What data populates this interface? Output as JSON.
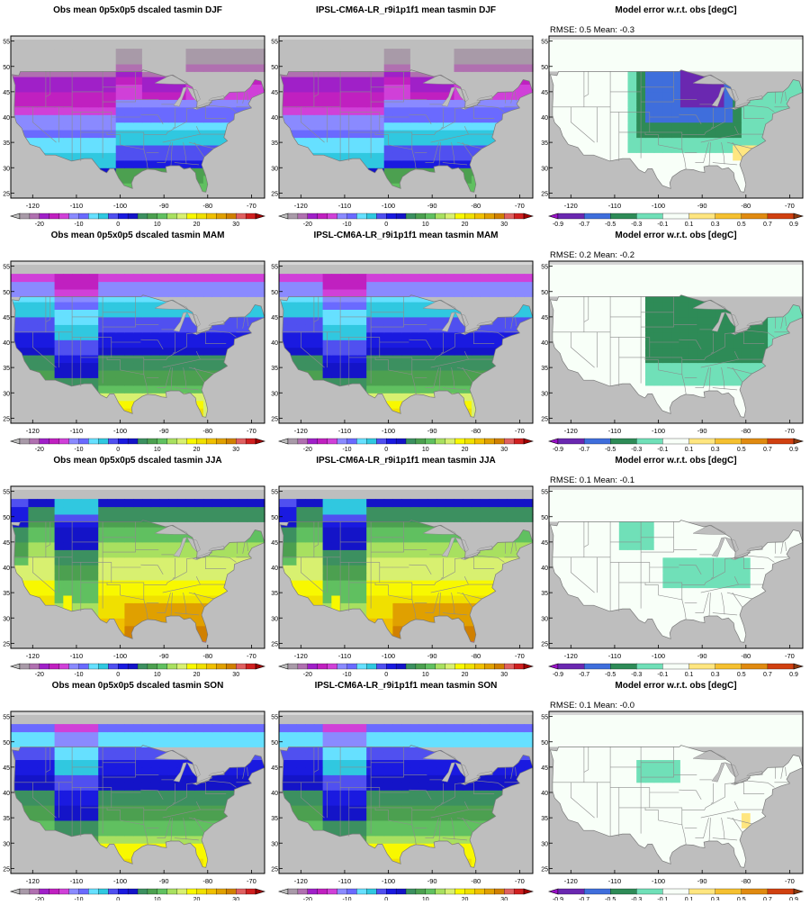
{
  "colors": {
    "ocean": "#bebebe",
    "land_nodata": "#ffffff",
    "state_lines": "#8c8c8c",
    "frame": "#000000"
  },
  "abs_colorbar": {
    "tick_labels": [
      "-20",
      "-10",
      "0",
      "10",
      "20",
      "30"
    ],
    "tick_values": [
      -20,
      -10,
      0,
      10,
      20,
      30
    ],
    "min": -25,
    "max": 30,
    "step": 2.5,
    "colors": [
      "#bebebe",
      "#a89aa8",
      "#b070b0",
      "#a020c8",
      "#c020c0",
      "#d040d8",
      "#8a8aff",
      "#6a6aff",
      "#66e0ff",
      "#30c8e0",
      "#5050f0",
      "#1a1ae0",
      "#1414c8",
      "#3c9060",
      "#4ca050",
      "#60c060",
      "#a8e060",
      "#d8f070",
      "#f8f800",
      "#f0e000",
      "#f0c000",
      "#e0a000",
      "#d08000",
      "#e06060",
      "#d02020",
      "#a00000"
    ]
  },
  "err_colorbar": {
    "tick_labels": [
      "-0.9",
      "-0.7",
      "-0.5",
      "-0.3",
      "-0.1",
      "0.1",
      "0.3",
      "0.5",
      "0.7",
      "0.9"
    ],
    "tick_values": [
      -0.9,
      -0.7,
      -0.5,
      -0.3,
      -0.1,
      0.1,
      0.3,
      0.5,
      0.7,
      0.9
    ],
    "min": -0.9,
    "max": 0.9,
    "step": 0.2,
    "colors": [
      "#9a10c8",
      "#6a28b0",
      "#3f6edc",
      "#2e8b57",
      "#70e0b8",
      "#f8fff8",
      "#ffe680",
      "#f5c030",
      "#e08a10",
      "#d04010",
      "#8b3a10"
    ]
  },
  "map_axes": {
    "lon_ticks": [
      "-120",
      "-110",
      "-100",
      "-90",
      "-80",
      "-70"
    ],
    "lon_values": [
      -120,
      -110,
      -100,
      -90,
      -80,
      -70
    ],
    "lat_ticks": [
      "25",
      "30",
      "35",
      "40",
      "45",
      "50",
      "55"
    ],
    "lat_values": [
      25,
      30,
      35,
      40,
      45,
      50,
      55
    ],
    "lon_range": [
      -125,
      -67
    ],
    "lat_range": [
      24,
      56
    ]
  },
  "panels": [
    {
      "title": "Obs mean 0p5x0p5 dscaled tasmin DJF",
      "kind": "abs",
      "season": "DJF",
      "source": "obs"
    },
    {
      "title": "IPSL-CM6A-LR_r9i1p1f1 mean tasmin DJF",
      "kind": "abs",
      "season": "DJF",
      "source": "model"
    },
    {
      "title": "Model error w.r.t. obs [degC]",
      "kind": "err",
      "season": "DJF",
      "annotation": "RMSE: 0.5  Mean: -0.3",
      "rmse": 0.5,
      "mean": -0.3
    },
    {
      "title": "Obs mean 0p5x0p5 dscaled tasmin MAM",
      "kind": "abs",
      "season": "MAM",
      "source": "obs"
    },
    {
      "title": "IPSL-CM6A-LR_r9i1p1f1 mean tasmin MAM",
      "kind": "abs",
      "season": "MAM",
      "source": "model"
    },
    {
      "title": "Model error w.r.t. obs [degC]",
      "kind": "err",
      "season": "MAM",
      "annotation": "RMSE: 0.2  Mean: -0.2",
      "rmse": 0.2,
      "mean": -0.2
    },
    {
      "title": "Obs mean 0p5x0p5 dscaled tasmin JJA",
      "kind": "abs",
      "season": "JJA",
      "source": "obs"
    },
    {
      "title": "IPSL-CM6A-LR_r9i1p1f1 mean tasmin JJA",
      "kind": "abs",
      "season": "JJA",
      "source": "model"
    },
    {
      "title": "Model error w.r.t. obs [degC]",
      "kind": "err",
      "season": "JJA",
      "annotation": "RMSE: 0.1  Mean: -0.1",
      "rmse": 0.1,
      "mean": -0.1
    },
    {
      "title": "Obs mean 0p5x0p5 dscaled tasmin SON",
      "kind": "abs",
      "season": "SON",
      "source": "obs"
    },
    {
      "title": "IPSL-CM6A-LR_r9i1p1f1 mean tasmin SON",
      "kind": "abs",
      "season": "SON",
      "source": "model"
    },
    {
      "title": "Model error w.r.t. obs [degC]",
      "kind": "err",
      "season": "SON",
      "annotation": "RMSE: 0.1  Mean: -0.0",
      "rmse": 0.1,
      "mean": -0.0
    }
  ],
  "chart_data": [
    {
      "type": "heatmap",
      "title": "Obs mean 0p5x0p5 dscaled tasmin DJF",
      "season": "DJF",
      "colorbar_range": [
        -25,
        30
      ],
      "regions": [
        {
          "name": "northern plains / upper midwest",
          "value": -17
        },
        {
          "name": "northern rockies",
          "value": -13
        },
        {
          "name": "central plains / ohio valley",
          "value": -7
        },
        {
          "name": "southern plains / southeast",
          "value": -1
        },
        {
          "name": "gulf coast",
          "value": 4
        },
        {
          "name": "south florida",
          "value": 12
        }
      ]
    },
    {
      "type": "heatmap",
      "title": "IPSL-CM6A-LR_r9i1p1f1 mean tasmin DJF",
      "season": "DJF",
      "colorbar_range": [
        -25,
        30
      ],
      "regions": [
        {
          "name": "northern plains / upper midwest",
          "value": -17
        },
        {
          "name": "northern rockies",
          "value": -13
        },
        {
          "name": "central plains / ohio valley",
          "value": -7
        },
        {
          "name": "southern plains / southeast",
          "value": -1
        },
        {
          "name": "gulf coast",
          "value": 4
        },
        {
          "name": "south florida",
          "value": 12
        }
      ]
    },
    {
      "type": "heatmap",
      "title": "Model error w.r.t. obs [degC]",
      "season": "DJF",
      "colorbar_range": [
        -0.9,
        0.9
      ],
      "rmse": 0.5,
      "mean": -0.3,
      "regions": [
        {
          "name": "upper midwest / great lakes",
          "value": -0.8
        },
        {
          "name": "northern plains",
          "value": -0.6
        },
        {
          "name": "central plains",
          "value": -0.4
        },
        {
          "name": "southwest / west",
          "value": 0.0
        },
        {
          "name": "carolinas / georgia",
          "value": 0.2
        }
      ]
    },
    {
      "type": "heatmap",
      "title": "Obs mean 0p5x0p5 dscaled tasmin MAM",
      "season": "MAM",
      "colorbar_range": [
        -25,
        30
      ],
      "regions": [
        {
          "name": "canada border",
          "value": -6
        },
        {
          "name": "northern states",
          "value": -1
        },
        {
          "name": "central",
          "value": 4
        },
        {
          "name": "southern",
          "value": 10
        },
        {
          "name": "gulf coast / south texas",
          "value": 16
        }
      ]
    },
    {
      "type": "heatmap",
      "title": "IPSL-CM6A-LR_r9i1p1f1 mean tasmin MAM",
      "season": "MAM",
      "colorbar_range": [
        -25,
        30
      ],
      "regions": [
        {
          "name": "canada border",
          "value": -6
        },
        {
          "name": "northern states",
          "value": -1
        },
        {
          "name": "central",
          "value": 4
        },
        {
          "name": "southern",
          "value": 10
        },
        {
          "name": "gulf coast / south texas",
          "value": 16
        }
      ]
    },
    {
      "type": "heatmap",
      "title": "Model error w.r.t. obs [degC]",
      "season": "MAM",
      "colorbar_range": [
        -0.9,
        0.9
      ],
      "rmse": 0.2,
      "mean": -0.2,
      "regions": [
        {
          "name": "great lakes",
          "value": -0.4
        },
        {
          "name": "east / midwest",
          "value": -0.2
        },
        {
          "name": "west",
          "value": 0.0
        }
      ]
    },
    {
      "type": "heatmap",
      "title": "Obs mean 0p5x0p5 dscaled tasmin JJA",
      "season": "JJA",
      "colorbar_range": [
        -25,
        30
      ],
      "regions": [
        {
          "name": "rockies",
          "value": 4
        },
        {
          "name": "northern states",
          "value": 10
        },
        {
          "name": "central",
          "value": 16
        },
        {
          "name": "southern",
          "value": 21
        },
        {
          "name": "gulf coast / desert southwest",
          "value": 24
        }
      ]
    },
    {
      "type": "heatmap",
      "title": "IPSL-CM6A-LR_r9i1p1f1 mean tasmin JJA",
      "season": "JJA",
      "colorbar_range": [
        -25,
        30
      ],
      "regions": [
        {
          "name": "rockies",
          "value": 4
        },
        {
          "name": "northern states",
          "value": 10
        },
        {
          "name": "central",
          "value": 16
        },
        {
          "name": "southern",
          "value": 21
        },
        {
          "name": "gulf coast / desert southwest",
          "value": 24
        }
      ]
    },
    {
      "type": "heatmap",
      "title": "Model error w.r.t. obs [degC]",
      "season": "JJA",
      "colorbar_range": [
        -0.9,
        0.9
      ],
      "rmse": 0.1,
      "mean": -0.1,
      "regions": [
        {
          "name": "scattered east / midwest",
          "value": -0.2
        },
        {
          "name": "most of domain",
          "value": 0.0
        }
      ]
    },
    {
      "type": "heatmap",
      "title": "Obs mean 0p5x0p5 dscaled tasmin SON",
      "season": "SON",
      "colorbar_range": [
        -25,
        30
      ],
      "regions": [
        {
          "name": "northern rockies",
          "value": -6
        },
        {
          "name": "northern states",
          "value": -1
        },
        {
          "name": "central",
          "value": 5
        },
        {
          "name": "southern",
          "value": 11
        },
        {
          "name": "gulf coast / florida",
          "value": 17
        }
      ]
    },
    {
      "type": "heatmap",
      "title": "IPSL-CM6A-LR_r9i1p1f1 mean tasmin SON",
      "season": "SON",
      "colorbar_range": [
        -25,
        30
      ],
      "regions": [
        {
          "name": "northern rockies",
          "value": -6
        },
        {
          "name": "northern states",
          "value": -1
        },
        {
          "name": "central",
          "value": 5
        },
        {
          "name": "southern",
          "value": 11
        },
        {
          "name": "gulf coast / florida",
          "value": 17
        }
      ]
    },
    {
      "type": "heatmap",
      "title": "Model error w.r.t. obs [degC]",
      "season": "SON",
      "colorbar_range": [
        -0.9,
        0.9
      ],
      "rmse": 0.1,
      "mean": -0.0,
      "regions": [
        {
          "name": "northern plains",
          "value": -0.2
        },
        {
          "name": "carolinas",
          "value": 0.2
        },
        {
          "name": "most of domain",
          "value": 0.0
        }
      ]
    }
  ]
}
